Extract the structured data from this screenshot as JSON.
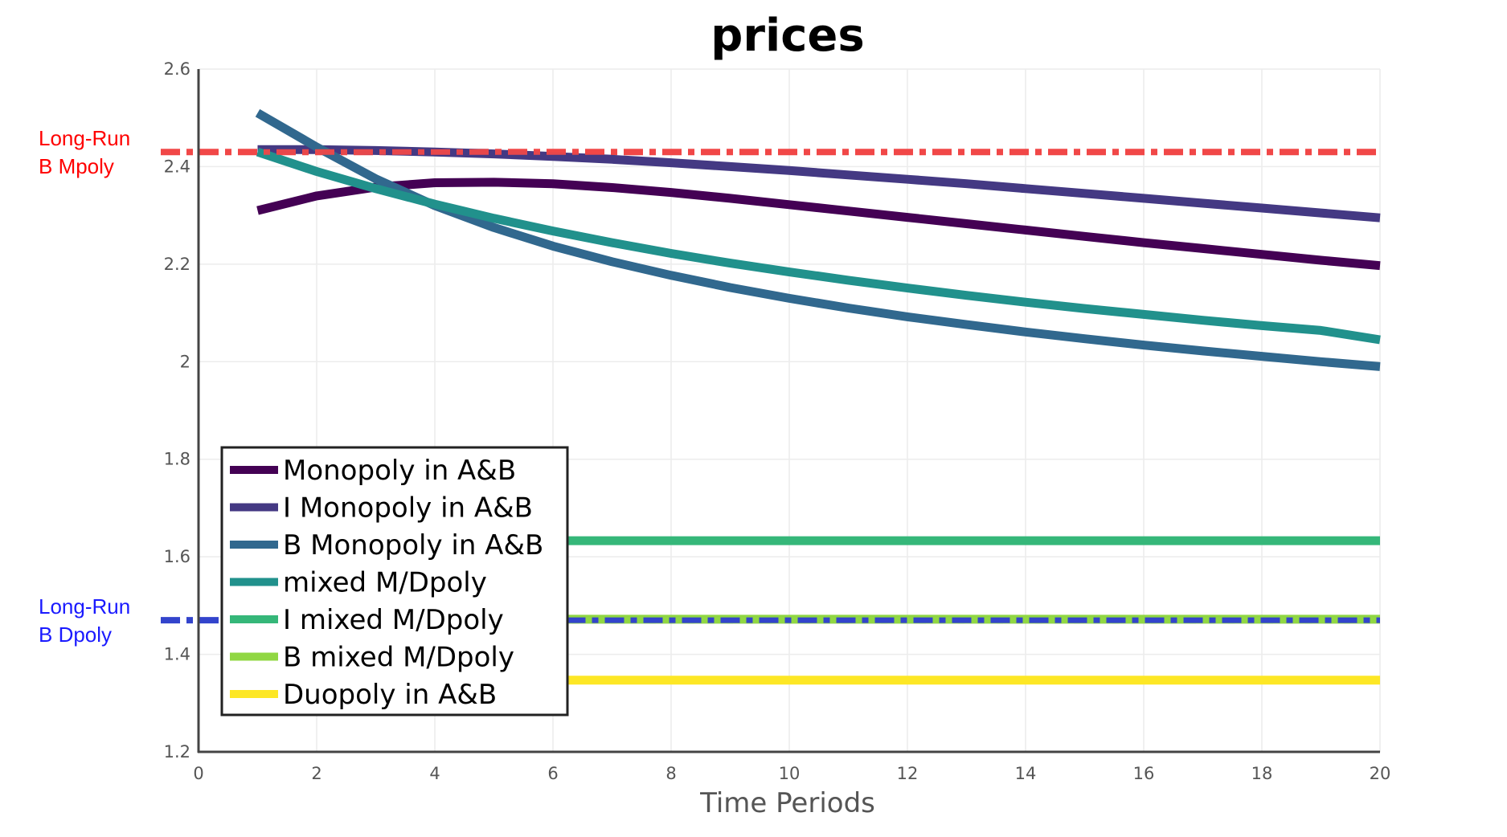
{
  "chart_data": {
    "type": "line",
    "title": "prices",
    "xlabel": "Time Periods",
    "ylabel": "",
    "xlim": [
      0,
      20
    ],
    "ylim": [
      1.2,
      2.6
    ],
    "xticks": [
      0,
      2,
      4,
      6,
      8,
      10,
      12,
      14,
      16,
      18,
      20
    ],
    "yticks": [
      1.2,
      1.4,
      1.6,
      1.8,
      2,
      2.2,
      2.4,
      2.6
    ],
    "xtick_labels": [
      "0",
      "2",
      "4",
      "6",
      "8",
      "10",
      "12",
      "14",
      "16",
      "18",
      "20"
    ],
    "ytick_labels": [
      "1.2",
      "1.4",
      "1.6",
      "1.8",
      "2",
      "2.2",
      "2.4",
      "2.6"
    ],
    "grid": true,
    "legend_position": "bottom-left",
    "x": [
      1,
      2,
      3,
      4,
      5,
      6,
      7,
      8,
      9,
      10,
      11,
      12,
      13,
      14,
      15,
      16,
      17,
      18,
      19,
      20
    ],
    "series": [
      {
        "name": "Monopoly in A&B",
        "color": "#440154",
        "values": [
          2.31,
          2.34,
          2.358,
          2.367,
          2.368,
          2.365,
          2.357,
          2.347,
          2.335,
          2.322,
          2.309,
          2.296,
          2.283,
          2.27,
          2.257,
          2.244,
          2.232,
          2.22,
          2.208,
          2.197
        ]
      },
      {
        "name": "I Monopoly in A&B",
        "color": "#443983",
        "values": [
          2.435,
          2.435,
          2.433,
          2.43,
          2.426,
          2.421,
          2.415,
          2.408,
          2.4,
          2.392,
          2.383,
          2.374,
          2.365,
          2.355,
          2.345,
          2.335,
          2.325,
          2.315,
          2.305,
          2.295
        ]
      },
      {
        "name": "B Monopoly in A&B",
        "color": "#31688E",
        "values": [
          2.51,
          2.44,
          2.375,
          2.32,
          2.275,
          2.237,
          2.205,
          2.177,
          2.152,
          2.13,
          2.11,
          2.092,
          2.076,
          2.061,
          2.047,
          2.034,
          2.022,
          2.011,
          2.0,
          1.99
        ]
      },
      {
        "name": "mixed M/Dpoly",
        "color": "#21918C",
        "values": [
          2.43,
          2.39,
          2.355,
          2.323,
          2.294,
          2.268,
          2.244,
          2.222,
          2.202,
          2.184,
          2.167,
          2.151,
          2.136,
          2.122,
          2.109,
          2.097,
          2.085,
          2.074,
          2.064,
          2.045
        ]
      },
      {
        "name": "I mixed M/Dpoly",
        "color": "#35B779",
        "values": [
          1.633,
          1.633,
          1.633,
          1.633,
          1.633,
          1.633,
          1.633,
          1.633,
          1.633,
          1.633,
          1.633,
          1.633,
          1.633,
          1.633,
          1.633,
          1.633,
          1.633,
          1.633,
          1.633,
          1.633
        ]
      },
      {
        "name": "B mixed M/Dpoly",
        "color": "#90D743",
        "values": [
          1.472,
          1.472,
          1.472,
          1.472,
          1.472,
          1.472,
          1.472,
          1.472,
          1.472,
          1.472,
          1.472,
          1.472,
          1.472,
          1.472,
          1.472,
          1.472,
          1.472,
          1.472,
          1.472,
          1.472
        ]
      },
      {
        "name": "Duopoly in A&B",
        "color": "#FDE725",
        "values": [
          1.347,
          1.347,
          1.347,
          1.347,
          1.347,
          1.347,
          1.347,
          1.347,
          1.347,
          1.347,
          1.347,
          1.347,
          1.347,
          1.347,
          1.347,
          1.347,
          1.347,
          1.347,
          1.347,
          1.347
        ]
      }
    ],
    "reference_lines": [
      {
        "label_line1": "Long-Run",
        "label_line2": "B Mpoly",
        "y": 2.43,
        "color": "#F04848",
        "label_color": "#FF0000",
        "style": "dash-dot"
      },
      {
        "label_line1": "Long-Run",
        "label_line2": "B Dpoly",
        "y": 1.47,
        "color": "#3344CC",
        "label_color": "#1A1AFF",
        "style": "dash-dot"
      }
    ]
  }
}
